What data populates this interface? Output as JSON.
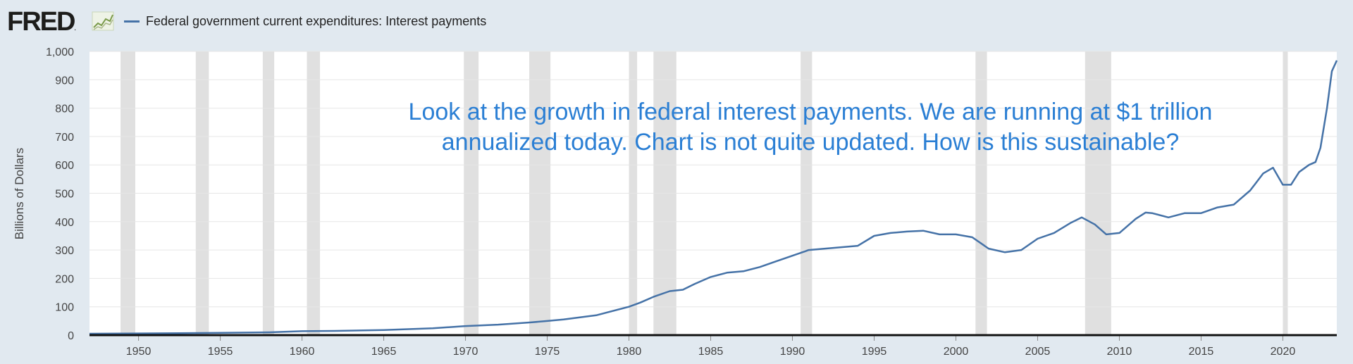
{
  "header": {
    "logo_text": "FRED",
    "logo_icon": "line-graph-icon",
    "legend_label": "Federal government current expenditures: Interest payments",
    "series_color": "#4572a7"
  },
  "annotation": {
    "text": "Look at the growth in federal interest payments. We are running at $1 trillion annualized today. Chart is not quite updated. How is this sustainable?",
    "color": "#2b7fd4"
  },
  "chart_data": {
    "type": "line",
    "title": "",
    "xlabel": "",
    "ylabel": "Billions of Dollars",
    "xlim": [
      1947,
      2023.3
    ],
    "ylim": [
      0,
      1000
    ],
    "x_ticks": [
      "1950",
      "1955",
      "1960",
      "1965",
      "1970",
      "1975",
      "1980",
      "1985",
      "1990",
      "1995",
      "2000",
      "2005",
      "2010",
      "2015",
      "2020"
    ],
    "y_ticks": [
      "0",
      "100",
      "200",
      "300",
      "400",
      "500",
      "600",
      "700",
      "800",
      "900",
      "1,000"
    ],
    "grid": "horizontal",
    "recession_shading": [
      [
        1948.9,
        1949.8
      ],
      [
        1953.5,
        1954.3
      ],
      [
        1957.6,
        1958.3
      ],
      [
        1960.3,
        1961.1
      ],
      [
        1969.9,
        1970.8
      ],
      [
        1973.9,
        1975.2
      ],
      [
        1980.0,
        1980.5
      ],
      [
        1981.5,
        1982.9
      ],
      [
        1990.5,
        1991.2
      ],
      [
        2001.2,
        2001.9
      ],
      [
        2007.9,
        2009.5
      ],
      [
        2020.0,
        2020.3
      ]
    ],
    "series": [
      {
        "name": "Federal government current expenditures: Interest payments",
        "color": "#4572a7",
        "x": [
          1947,
          1950,
          1955,
          1958,
          1960,
          1962,
          1965,
          1968,
          1970,
          1972,
          1974,
          1975,
          1976,
          1978,
          1980,
          1980.7,
          1981.5,
          1982.5,
          1983.3,
          1984,
          1985,
          1986,
          1987,
          1988,
          1989,
          1990,
          1991,
          1992,
          1993,
          1994,
          1995,
          1996,
          1997,
          1998,
          1999,
          2000,
          2001,
          2002,
          2003,
          2004,
          2005,
          2006,
          2007,
          2007.7,
          2008.5,
          2009.2,
          2010,
          2011,
          2011.6,
          2012,
          2013,
          2014,
          2015,
          2016,
          2017,
          2018,
          2018.8,
          2019.4,
          2020,
          2020.5,
          2021,
          2021.6,
          2022,
          2022.3,
          2022.7,
          2023,
          2023.3
        ],
        "values": [
          5,
          6,
          8,
          10,
          14,
          15,
          18,
          24,
          32,
          37,
          45,
          50,
          55,
          70,
          100,
          115,
          135,
          155,
          160,
          180,
          205,
          220,
          225,
          240,
          260,
          280,
          300,
          305,
          310,
          315,
          350,
          360,
          365,
          368,
          355,
          355,
          345,
          305,
          292,
          300,
          340,
          360,
          395,
          415,
          390,
          355,
          360,
          410,
          432,
          430,
          415,
          430,
          430,
          450,
          460,
          510,
          570,
          590,
          530,
          530,
          575,
          600,
          610,
          660,
          800,
          930,
          968
        ]
      }
    ]
  }
}
